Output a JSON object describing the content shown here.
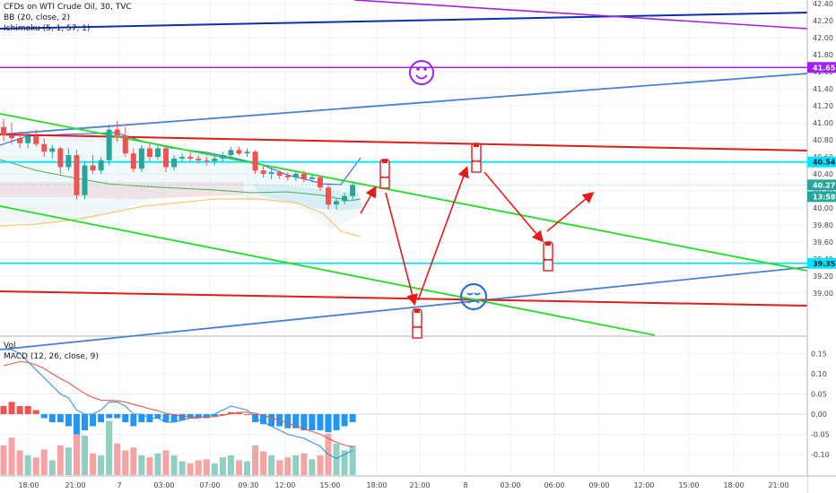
{
  "header": {
    "title": "CFDs on WTI Crude Oil, 30, TVC",
    "indicator_bb": "BB (20, close, 2)",
    "indicator_ichimoku": "Ichimoku (5, 1, 57, 1)"
  },
  "lower_pane": {
    "vol_label": "Vol",
    "macd_label": "MACD (12, 26, close, 9)"
  },
  "colors": {
    "up": "#26a69a",
    "down": "#ef5350",
    "vol_up": "#8fcfc4",
    "vol_down": "#f5a3a3",
    "hist": "#2196f3",
    "hist_neg": "#ef5350",
    "macd_line": "#2f95e0",
    "signal_line": "#e9574a",
    "bb_line": "#2962ff",
    "kijun": "#f7c873",
    "cyan": "#00e5ff",
    "red_line": "#e31b1b",
    "green_line": "#22dd22",
    "blue_line": "#4a7fd6",
    "navy_line": "#0b2fb4",
    "purple_line": "#a020f0",
    "arrow": "#e31b1b"
  },
  "chart_data": {
    "type": "candlestick",
    "price_ticks": [
      "42.40",
      "42.20",
      "42.00",
      "41.80",
      "41.60",
      "41.40",
      "41.20",
      "41.00",
      "40.80",
      "40.60",
      "40.40",
      "40.20",
      "40.00",
      "39.80",
      "39.60",
      "39.40",
      "39.20",
      "39.00"
    ],
    "macd_ticks": [
      "0.15",
      "0.10",
      "0.05",
      "0.00",
      "-0.05",
      "-0.10"
    ],
    "time_ticks": [
      "18:00",
      "21:00",
      "7",
      "03:00",
      "07:00",
      "09:30",
      "12:00",
      "15:00",
      "18:00",
      "21:00",
      "8",
      "03:00",
      "06:00",
      "09:00",
      "12:00",
      "15:00",
      "18:00",
      "21:00"
    ],
    "price_tags": [
      {
        "value": "41.65",
        "color": "#a020f0"
      },
      {
        "value": "40.54",
        "color": "#00e5ff"
      },
      {
        "value": "40.27",
        "color": "#26a69a"
      },
      {
        "value": "13:58",
        "color": "#26a69a"
      },
      {
        "value": "39.35",
        "color": "#00e5ff"
      }
    ],
    "candles": [
      [
        40.95,
        41.05,
        40.78,
        40.85
      ],
      [
        40.85,
        41.0,
        40.75,
        40.82
      ],
      [
        40.82,
        40.9,
        40.7,
        40.76
      ],
      [
        40.76,
        40.88,
        40.7,
        40.84
      ],
      [
        40.84,
        40.92,
        40.72,
        40.75
      ],
      [
        40.75,
        40.82,
        40.6,
        40.66
      ],
      [
        40.66,
        40.74,
        40.58,
        40.7
      ],
      [
        40.7,
        40.72,
        40.4,
        40.48
      ],
      [
        40.48,
        40.7,
        40.44,
        40.62
      ],
      [
        40.62,
        40.68,
        40.1,
        40.15
      ],
      [
        40.15,
        40.55,
        40.1,
        40.5
      ],
      [
        40.5,
        40.62,
        40.4,
        40.44
      ],
      [
        40.44,
        40.6,
        40.4,
        40.56
      ],
      [
        40.56,
        40.98,
        40.5,
        40.92
      ],
      [
        40.92,
        41.02,
        40.78,
        40.85
      ],
      [
        40.85,
        40.95,
        40.6,
        40.64
      ],
      [
        40.64,
        40.7,
        40.42,
        40.46
      ],
      [
        40.46,
        40.74,
        40.42,
        40.7
      ],
      [
        40.7,
        40.76,
        40.55,
        40.6
      ],
      [
        40.6,
        40.74,
        40.56,
        40.7
      ],
      [
        40.7,
        40.72,
        40.42,
        40.48
      ],
      [
        40.48,
        40.62,
        40.44,
        40.58
      ],
      [
        40.58,
        40.64,
        40.54,
        40.6
      ],
      [
        40.6,
        40.66,
        40.55,
        40.58
      ],
      [
        40.58,
        40.62,
        40.52,
        40.56
      ],
      [
        40.56,
        40.6,
        40.5,
        40.55
      ],
      [
        40.55,
        40.62,
        40.5,
        40.58
      ],
      [
        40.58,
        40.66,
        40.54,
        40.62
      ],
      [
        40.62,
        40.72,
        40.58,
        40.68
      ],
      [
        40.68,
        40.72,
        40.62,
        40.64
      ],
      [
        40.64,
        40.7,
        40.6,
        40.66
      ],
      [
        40.66,
        40.68,
        40.4,
        40.44
      ],
      [
        40.44,
        40.5,
        40.36,
        40.4
      ],
      [
        40.4,
        40.46,
        40.34,
        40.42
      ],
      [
        40.42,
        40.44,
        40.34,
        40.38
      ],
      [
        40.38,
        40.42,
        40.32,
        40.36
      ],
      [
        40.36,
        40.44,
        40.32,
        40.4
      ],
      [
        40.4,
        40.44,
        40.3,
        40.34
      ],
      [
        40.34,
        40.4,
        40.3,
        40.36
      ],
      [
        40.36,
        40.38,
        40.2,
        40.24
      ],
      [
        40.24,
        40.28,
        39.98,
        40.04
      ],
      [
        40.04,
        40.12,
        39.98,
        40.08
      ],
      [
        40.08,
        40.18,
        40.04,
        40.14
      ],
      [
        40.14,
        40.3,
        40.1,
        40.27
      ]
    ],
    "macd_hist": [
      0.02,
      0.03,
      0.02,
      0.02,
      0.01,
      -0.01,
      -0.02,
      -0.02,
      -0.03,
      -0.05,
      -0.04,
      -0.03,
      -0.02,
      -0.01,
      -0.01,
      -0.02,
      -0.03,
      -0.02,
      -0.02,
      -0.01,
      -0.02,
      -0.02,
      -0.015,
      -0.01,
      -0.01,
      -0.01,
      -0.005,
      0.0,
      0.005,
      0.005,
      0.0,
      -0.02,
      -0.025,
      -0.03,
      -0.03,
      -0.035,
      -0.035,
      -0.04,
      -0.04,
      -0.04,
      -0.045,
      -0.04,
      -0.03,
      -0.02
    ],
    "macd_line": [
      0.16,
      0.16,
      0.15,
      0.13,
      0.11,
      0.09,
      0.07,
      0.05,
      0.04,
      0.01,
      0.0,
      0.0,
      0.01,
      0.03,
      0.03,
      0.02,
      0.0,
      0.0,
      -0.01,
      -0.01,
      -0.02,
      -0.02,
      -0.015,
      -0.01,
      -0.01,
      -0.005,
      0.0,
      0.01,
      0.02,
      0.015,
      0.01,
      -0.01,
      -0.02,
      -0.03,
      -0.04,
      -0.05,
      -0.055,
      -0.06,
      -0.07,
      -0.08,
      -0.1,
      -0.11,
      -0.1,
      -0.09
    ],
    "signal_line": [
      0.12,
      0.125,
      0.13,
      0.128,
      0.122,
      0.113,
      0.1,
      0.088,
      0.078,
      0.064,
      0.051,
      0.041,
      0.035,
      0.034,
      0.033,
      0.03,
      0.024,
      0.019,
      0.013,
      0.008,
      0.002,
      -0.002,
      -0.005,
      -0.006,
      -0.007,
      -0.007,
      -0.006,
      -0.003,
      0.001,
      0.004,
      0.005,
      0.002,
      -0.003,
      -0.009,
      -0.015,
      -0.022,
      -0.029,
      -0.036,
      -0.043,
      -0.05,
      -0.06,
      -0.07,
      -0.077,
      -0.082
    ],
    "volume": [
      0.3,
      0.38,
      0.25,
      0.2,
      0.18,
      0.26,
      0.15,
      0.3,
      0.28,
      0.45,
      0.4,
      0.22,
      0.2,
      0.55,
      0.32,
      0.25,
      0.28,
      0.2,
      0.18,
      0.22,
      0.25,
      0.2,
      0.14,
      0.12,
      0.15,
      0.16,
      0.12,
      0.18,
      0.2,
      0.15,
      0.14,
      0.3,
      0.24,
      0.2,
      0.15,
      0.18,
      0.2,
      0.22,
      0.16,
      0.2,
      0.42,
      0.32,
      0.25,
      0.3
    ]
  }
}
